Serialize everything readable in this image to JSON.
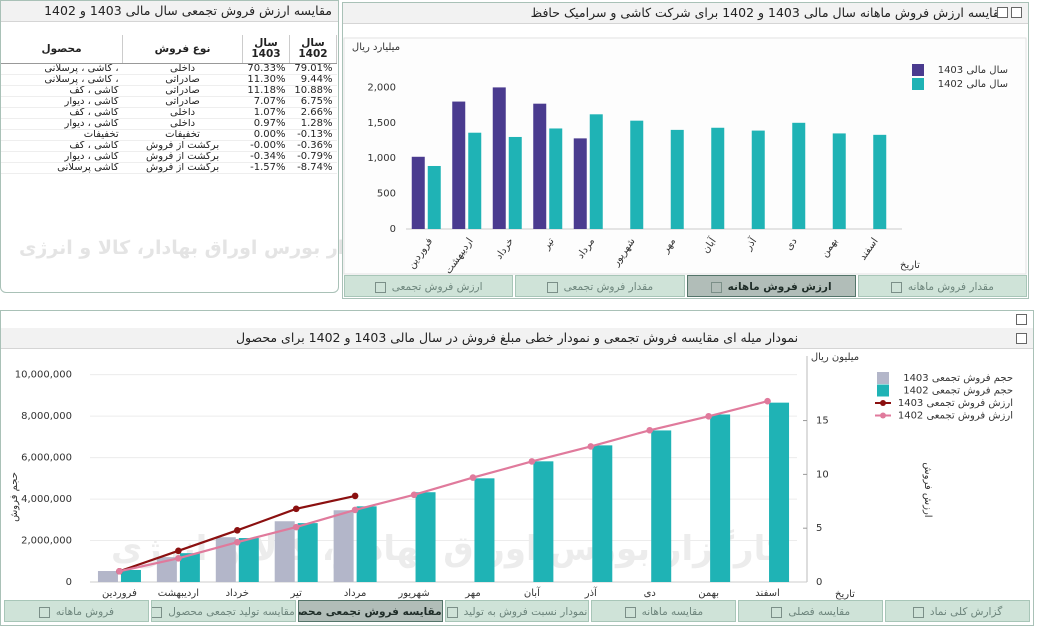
{
  "table_panel": {
    "title": "مقایسه ارزش فروش تجمعی سال مالی 1403 و 1402",
    "columns": [
      "محصول",
      "نوع فروش",
      "سال 1403",
      "سال 1402"
    ],
    "rows": [
      [
        "کاشی ، پرسلانی ،",
        "داخلی",
        "70.33%",
        "79.01%"
      ],
      [
        "کاشی ، پرسلانی ،",
        "صادراتی",
        "11.30%",
        "9.44%"
      ],
      [
        "کاشی ، کف",
        "صادراتی",
        "11.18%",
        "10.88%"
      ],
      [
        "کاشی ، دیوار",
        "صادراتی",
        "7.07%",
        "6.75%"
      ],
      [
        "کاشی ، کف",
        "داخلی",
        "1.07%",
        "2.66%"
      ],
      [
        "کاشی ، دیوار",
        "داخلی",
        "0.97%",
        "1.28%"
      ],
      [
        "تخفیفات",
        "تخفیفات",
        "0.00%",
        "-0.13%"
      ],
      [
        "کاشی ، کف",
        "برگشت از فروش",
        "-0.00%",
        "-0.36%"
      ],
      [
        "کاشی ، دیوار",
        "برگشت از فروش",
        "-0.34%",
        "-0.79%"
      ],
      [
        "کاشی پرسلانی",
        "برگشت از فروش",
        "-1.57%",
        "-8.74%"
      ]
    ]
  },
  "watermark": "کارگزار بورس اوراق بهادار، کالا و انرژی",
  "chart_data": [
    {
      "type": "bar",
      "title": "مقایسه ارزش فروش ماهانه سال مالی 1403 و 1402 برای شرکت کاشی و سرامیک حافظ",
      "ylabel": "میلیارد ریال",
      "xlabel": "تاریخ",
      "categories": [
        "فروردین",
        "اردیبهشت",
        "خرداد",
        "تیر",
        "مرداد",
        "شهریور",
        "مهر",
        "آبان",
        "آذر",
        "دی",
        "بهمن",
        "اسفند"
      ],
      "series": [
        {
          "name": "سال مالی 1403",
          "color": "#4a3b8f",
          "values": [
            1020,
            1800,
            2000,
            1770,
            1280,
            null,
            null,
            null,
            null,
            null,
            null,
            null
          ]
        },
        {
          "name": "سال مالی 1402",
          "color": "#1fb3b5",
          "values": [
            890,
            1360,
            1300,
            1420,
            1620,
            1530,
            1400,
            1430,
            1390,
            1500,
            1350,
            1330
          ]
        }
      ],
      "ylim": [
        0,
        2500
      ],
      "yticks": [
        0,
        500,
        {
          "value": 1000,
          "label": "1,000"
        },
        {
          "value": 1500,
          "label": "1,500"
        },
        {
          "value": 2000,
          "label": "2,000"
        }
      ],
      "grid": false,
      "legend": "top-right"
    },
    {
      "type": "combo",
      "title": "نمودار میله ای مقایسه فروش تجمعی و نمودار خطی مبلغ فروش در سال مالی 1403 و 1402 برای محصول",
      "ylabel": "حجم فروش",
      "y2label": "ارزش فروش",
      "y2unit": "میلیون ریال",
      "xlabel": "تاریخ",
      "categories": [
        "فروردین",
        "اردیبهشت",
        "خرداد",
        "تیر",
        "مرداد",
        "شهریور",
        "مهر",
        "آبان",
        "آذر",
        "دی",
        "بهمن",
        "اسفند"
      ],
      "series": [
        {
          "name": "حجم فروش تجمعی 1403",
          "type": "bar",
          "color": "#b3b6c9",
          "values": [
            530000,
            1200000,
            2160000,
            2930000,
            3460000,
            null,
            null,
            null,
            null,
            null,
            null,
            null
          ]
        },
        {
          "name": "حجم فروش تجمعی 1402",
          "type": "bar",
          "color": "#1fb3b5",
          "values": [
            580000,
            1390000,
            2120000,
            2840000,
            3650000,
            4330000,
            5000000,
            5820000,
            6590000,
            7310000,
            8080000,
            8650000
          ]
        },
        {
          "name": "ارزش فروش تجمعی 1403",
          "type": "line",
          "axis": "y2",
          "color": "#8b1010",
          "values": [
            1.0,
            2.9,
            4.8,
            6.8,
            8.0,
            null,
            null,
            null,
            null,
            null,
            null,
            null
          ]
        },
        {
          "name": "ارزش فروش تجمعی 1402",
          "type": "line",
          "axis": "y2",
          "color": "#e07a9c",
          "values": [
            1.0,
            2.2,
            3.7,
            5.1,
            6.7,
            8.1,
            9.7,
            11.2,
            12.6,
            14.1,
            15.4,
            16.8
          ]
        }
      ],
      "ylim": [
        0,
        10900000
      ],
      "yticks": [
        0,
        {
          "value": 2000000,
          "label": "2,000,000"
        },
        {
          "value": 4000000,
          "label": "4,000,000"
        },
        {
          "value": 6000000,
          "label": "6,000,000"
        },
        {
          "value": 8000000,
          "label": "8,000,000"
        },
        {
          "value": 10000000,
          "label": "10,000,000"
        }
      ],
      "y2lim": [
        0,
        21
      ],
      "y2ticks": [
        0,
        5,
        10,
        15
      ],
      "grid": true,
      "legend": "top-right"
    }
  ],
  "top_tabs": [
    "ارزش فروش تجمعی",
    "مقدار فروش تجمعی",
    "ارزش فروش ماهانه",
    "مقدار فروش ماهانه"
  ],
  "top_active_tab": 2,
  "bottom_tabs": [
    "فروش ماهانه",
    "مقایسه تولید تجمعی محصول",
    "مقایسه فروش تجمعی محصول",
    "نمودار نسبت فروش به تولید",
    "مقایسه ماهانه",
    "مقایسه فصلی",
    "گزارش کلی نماد"
  ],
  "bottom_active_tab": 2
}
